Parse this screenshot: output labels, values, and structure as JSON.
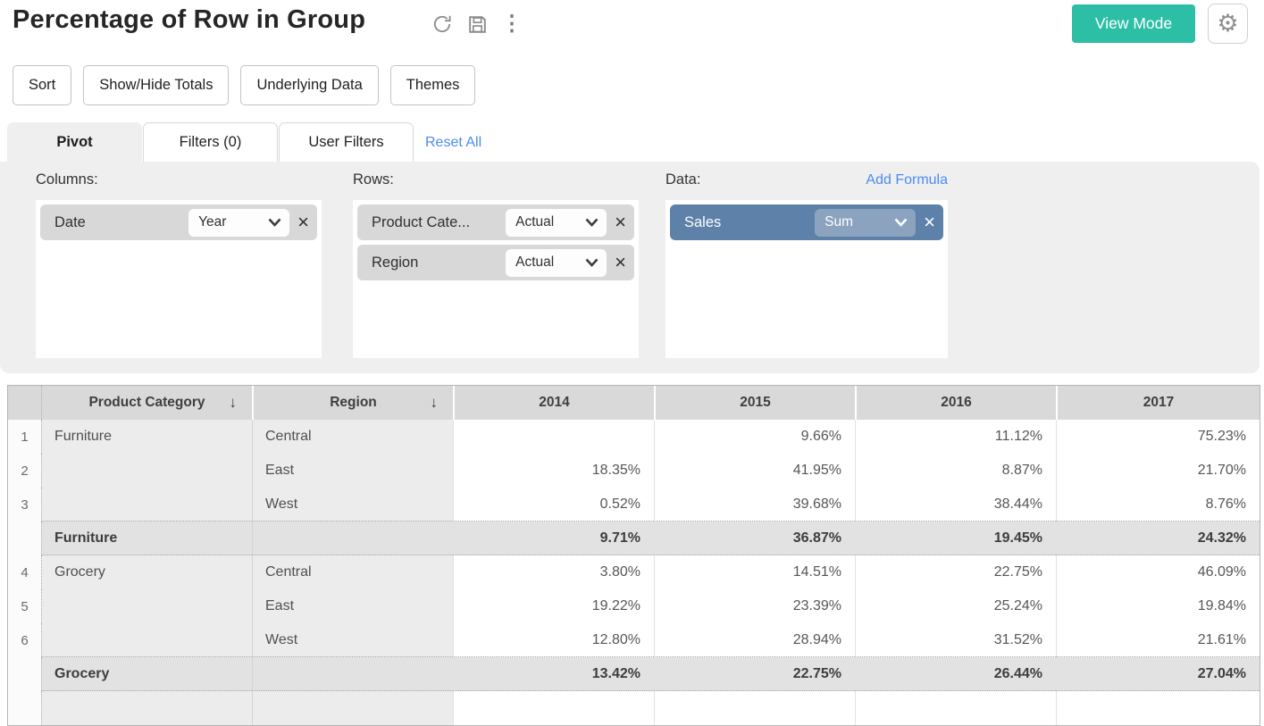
{
  "header": {
    "title": "Percentage of Row in Group",
    "view_mode_label": "View Mode",
    "kebab_glyph": "⋮",
    "gear_glyph": "⚙"
  },
  "colors": {
    "accent_teal": "#2cbfa5",
    "link_blue": "#4a8cf2",
    "data_chip_blue": "#5d81a8"
  },
  "toolbar": {
    "buttons": [
      "Sort",
      "Show/Hide Totals",
      "Underlying Data",
      "Themes"
    ]
  },
  "tabs": {
    "items": [
      {
        "label": "Pivot",
        "active": true
      },
      {
        "label": "Filters  (0)",
        "active": false
      },
      {
        "label": "User Filters",
        "active": false
      }
    ],
    "reset_label": "Reset All"
  },
  "pivot_panel": {
    "columns": {
      "label": "Columns:",
      "fields": [
        {
          "name": "Date",
          "aggregation": "Year"
        }
      ]
    },
    "rows": {
      "label": "Rows:",
      "fields": [
        {
          "name": "Product Cate...",
          "aggregation": "Actual"
        },
        {
          "name": "Region",
          "aggregation": "Actual"
        }
      ]
    },
    "data": {
      "label": "Data:",
      "add_formula_label": "Add Formula",
      "fields": [
        {
          "name": "Sales",
          "aggregation": "Sum"
        }
      ]
    },
    "close_glyph": "×",
    "sort_desc_glyph": "↓"
  },
  "table": {
    "columns": [
      "Product Category",
      "Region",
      "2014",
      "2015",
      "2016",
      "2017"
    ],
    "rows": [
      {
        "num": "1",
        "category": "Furniture",
        "region": "Central",
        "values": [
          "",
          "9.66%",
          "11.12%",
          "75.23%"
        ],
        "type": "data"
      },
      {
        "num": "2",
        "category": "",
        "region": "East",
        "values": [
          "18.35%",
          "41.95%",
          "8.87%",
          "21.70%"
        ],
        "type": "data"
      },
      {
        "num": "3",
        "category": "",
        "region": "West",
        "values": [
          "0.52%",
          "39.68%",
          "38.44%",
          "8.76%"
        ],
        "type": "data",
        "group_end": true
      },
      {
        "num": "",
        "category": "Furniture",
        "region": "",
        "values": [
          "9.71%",
          "36.87%",
          "19.45%",
          "24.32%"
        ],
        "type": "total"
      },
      {
        "num": "4",
        "category": "Grocery",
        "region": "Central",
        "values": [
          "3.80%",
          "14.51%",
          "22.75%",
          "46.09%"
        ],
        "type": "data"
      },
      {
        "num": "5",
        "category": "",
        "region": "East",
        "values": [
          "19.22%",
          "23.39%",
          "25.24%",
          "19.84%"
        ],
        "type": "data"
      },
      {
        "num": "6",
        "category": "",
        "region": "West",
        "values": [
          "12.80%",
          "28.94%",
          "31.52%",
          "21.61%"
        ],
        "type": "data",
        "group_end": true
      },
      {
        "num": "",
        "category": "Grocery",
        "region": "",
        "values": [
          "13.42%",
          "22.75%",
          "26.44%",
          "27.04%"
        ],
        "type": "total"
      },
      {
        "num": "",
        "category": "",
        "region": "",
        "values": [
          "",
          "",
          "",
          ""
        ],
        "type": "data"
      }
    ]
  }
}
